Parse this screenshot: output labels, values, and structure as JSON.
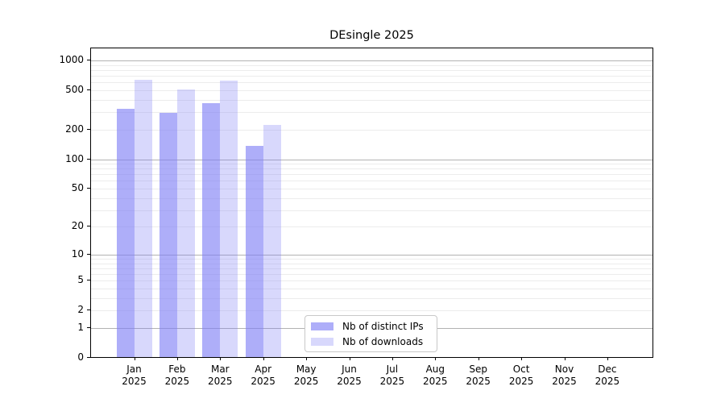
{
  "chart_data": {
    "type": "bar",
    "title": "DEsingle 2025",
    "x_axis": {
      "months": [
        "Jan",
        "Feb",
        "Mar",
        "Apr",
        "May",
        "Jun",
        "Jul",
        "Aug",
        "Sep",
        "Oct",
        "Nov",
        "Dec"
      ],
      "year_label": "2025"
    },
    "y_axis": {
      "scale": "log10(value+1)",
      "ylim": [
        0,
        1323
      ],
      "tick_labels": [
        0,
        1,
        2,
        5,
        10,
        20,
        50,
        100,
        200,
        500,
        1000
      ],
      "major_gridlines": [
        1,
        10,
        100,
        1000
      ],
      "minor_gridlines": [
        2,
        3,
        4,
        5,
        6,
        7,
        8,
        9,
        20,
        30,
        40,
        50,
        60,
        70,
        80,
        90,
        200,
        300,
        400,
        500,
        600,
        700,
        800,
        900
      ],
      "grid": "on"
    },
    "series": [
      {
        "name": "Nb of distinct IPs",
        "base_color": "#7d7df5",
        "opacity": 0.62,
        "values": [
          320,
          290,
          365,
          135,
          null,
          null,
          null,
          null,
          null,
          null,
          null,
          null
        ]
      },
      {
        "name": "Nb of downloads",
        "base_color": "#7d7df5",
        "opacity": 0.3,
        "values": [
          630,
          500,
          615,
          220,
          null,
          null,
          null,
          null,
          null,
          null,
          null,
          null
        ]
      }
    ],
    "legend_position": "lower center, inside axes"
  },
  "colors": {
    "background": "#ffffff",
    "spine": "#000000",
    "major_grid": "#b2b2b2",
    "minor_grid": "#ececec",
    "legend_border": "#c8c8c8",
    "text": "#000000"
  }
}
